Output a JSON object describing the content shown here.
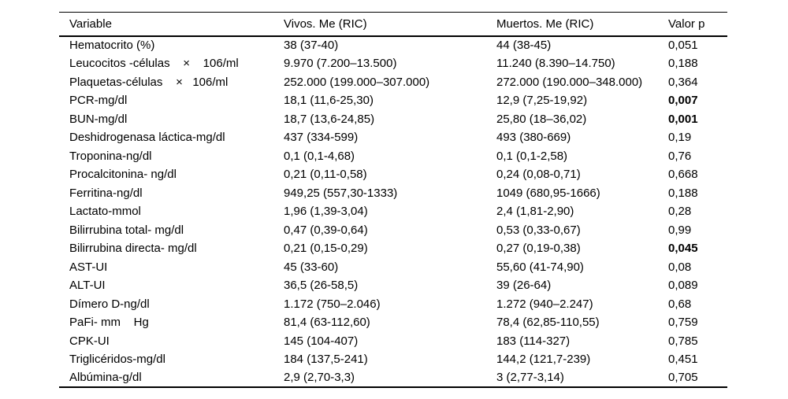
{
  "table": {
    "columns": [
      "Variable",
      "Vivos. Me (RIC)",
      "Muertos. Me (RIC)",
      "Valor p"
    ],
    "rows": [
      {
        "variable": "Hematocrito (%)",
        "vivos": "38 (37-40)",
        "muertos": "44 (38-45)",
        "p": "0,051",
        "sig": false
      },
      {
        "variable": "Leucocitos -células    ×    106/ml",
        "vivos": "9.970 (7.200–13.500)",
        "muertos": "11.240 (8.390–14.750)",
        "p": "0,188",
        "sig": false
      },
      {
        "variable": "Plaquetas-células    ×   106/ml",
        "vivos": "252.000 (199.000–307.000)",
        "muertos": "272.000 (190.000–348.000)",
        "p": "0,364",
        "sig": false
      },
      {
        "variable": "PCR-mg/dl",
        "vivos": "18,1 (11,6-25,30)",
        "muertos": "12,9 (7,25-19,92)",
        "p": "0,007",
        "sig": true
      },
      {
        "variable": "BUN-mg/dl",
        "vivos": "18,7 (13,6-24,85)",
        "muertos": "25,80 (18–36,02)",
        "p": "0,001",
        "sig": true
      },
      {
        "variable": "Deshidrogenasa láctica-mg/dl",
        "vivos": "437 (334-599)",
        "muertos": "493 (380-669)",
        "p": "0,19",
        "sig": false
      },
      {
        "variable": "Troponina-ng/dl",
        "vivos": "0,1 (0,1-4,68)",
        "muertos": "0,1 (0,1-2,58)",
        "p": "0,76",
        "sig": false
      },
      {
        "variable": "Procalcitonina- ng/dl",
        "vivos": "0,21 (0,11-0,58)",
        "muertos": "0,24 (0,08-0,71)",
        "p": "0,668",
        "sig": false
      },
      {
        "variable": "Ferritina-ng/dl",
        "vivos": "949,25 (557,30-1333)",
        "muertos": "1049 (680,95-1666)",
        "p": "0,188",
        "sig": false
      },
      {
        "variable": "Lactato-mmol",
        "vivos": "1,96 (1,39-3,04)",
        "muertos": "2,4 (1,81-2,90)",
        "p": "0,28",
        "sig": false
      },
      {
        "variable": "Bilirrubina total- mg/dl",
        "vivos": "0,47 (0,39-0,64)",
        "muertos": "0,53 (0,33-0,67)",
        "p": "0,99",
        "sig": false
      },
      {
        "variable": "Bilirrubina directa- mg/dl",
        "vivos": "0,21 (0,15-0,29)",
        "muertos": "0,27 (0,19-0,38)",
        "p": "0,045",
        "sig": true
      },
      {
        "variable": "AST-UI",
        "vivos": "45 (33-60)",
        "muertos": "55,60 (41-74,90)",
        "p": "0,08",
        "sig": false
      },
      {
        "variable": "ALT-UI",
        "vivos": "36,5 (26-58,5)",
        "muertos": "39 (26-64)",
        "p": "0,089",
        "sig": false
      },
      {
        "variable": "Dímero D-ng/dl",
        "vivos": "1.172 (750–2.046)",
        "muertos": "1.272 (940–2.247)",
        "p": "0,68",
        "sig": false
      },
      {
        "variable": "PaFi- mm    Hg",
        "vivos": "81,4 (63-112,60)",
        "muertos": "78,4 (62,85-110,55)",
        "p": "0,759",
        "sig": false
      },
      {
        "variable": "CPK-UI",
        "vivos": "145 (104-407)",
        "muertos": "183 (114-327)",
        "p": "0,785",
        "sig": false
      },
      {
        "variable": "Triglicéridos-mg/dl",
        "vivos": "184 (137,5-241)",
        "muertos": "144,2 (121,7-239)",
        "p": "0,451",
        "sig": false
      },
      {
        "variable": "Albúmina-g/dl",
        "vivos": "2,9 (2,70-3,3)",
        "muertos": "3 (2,77-3,14)",
        "p": "0,705",
        "sig": false
      }
    ]
  }
}
